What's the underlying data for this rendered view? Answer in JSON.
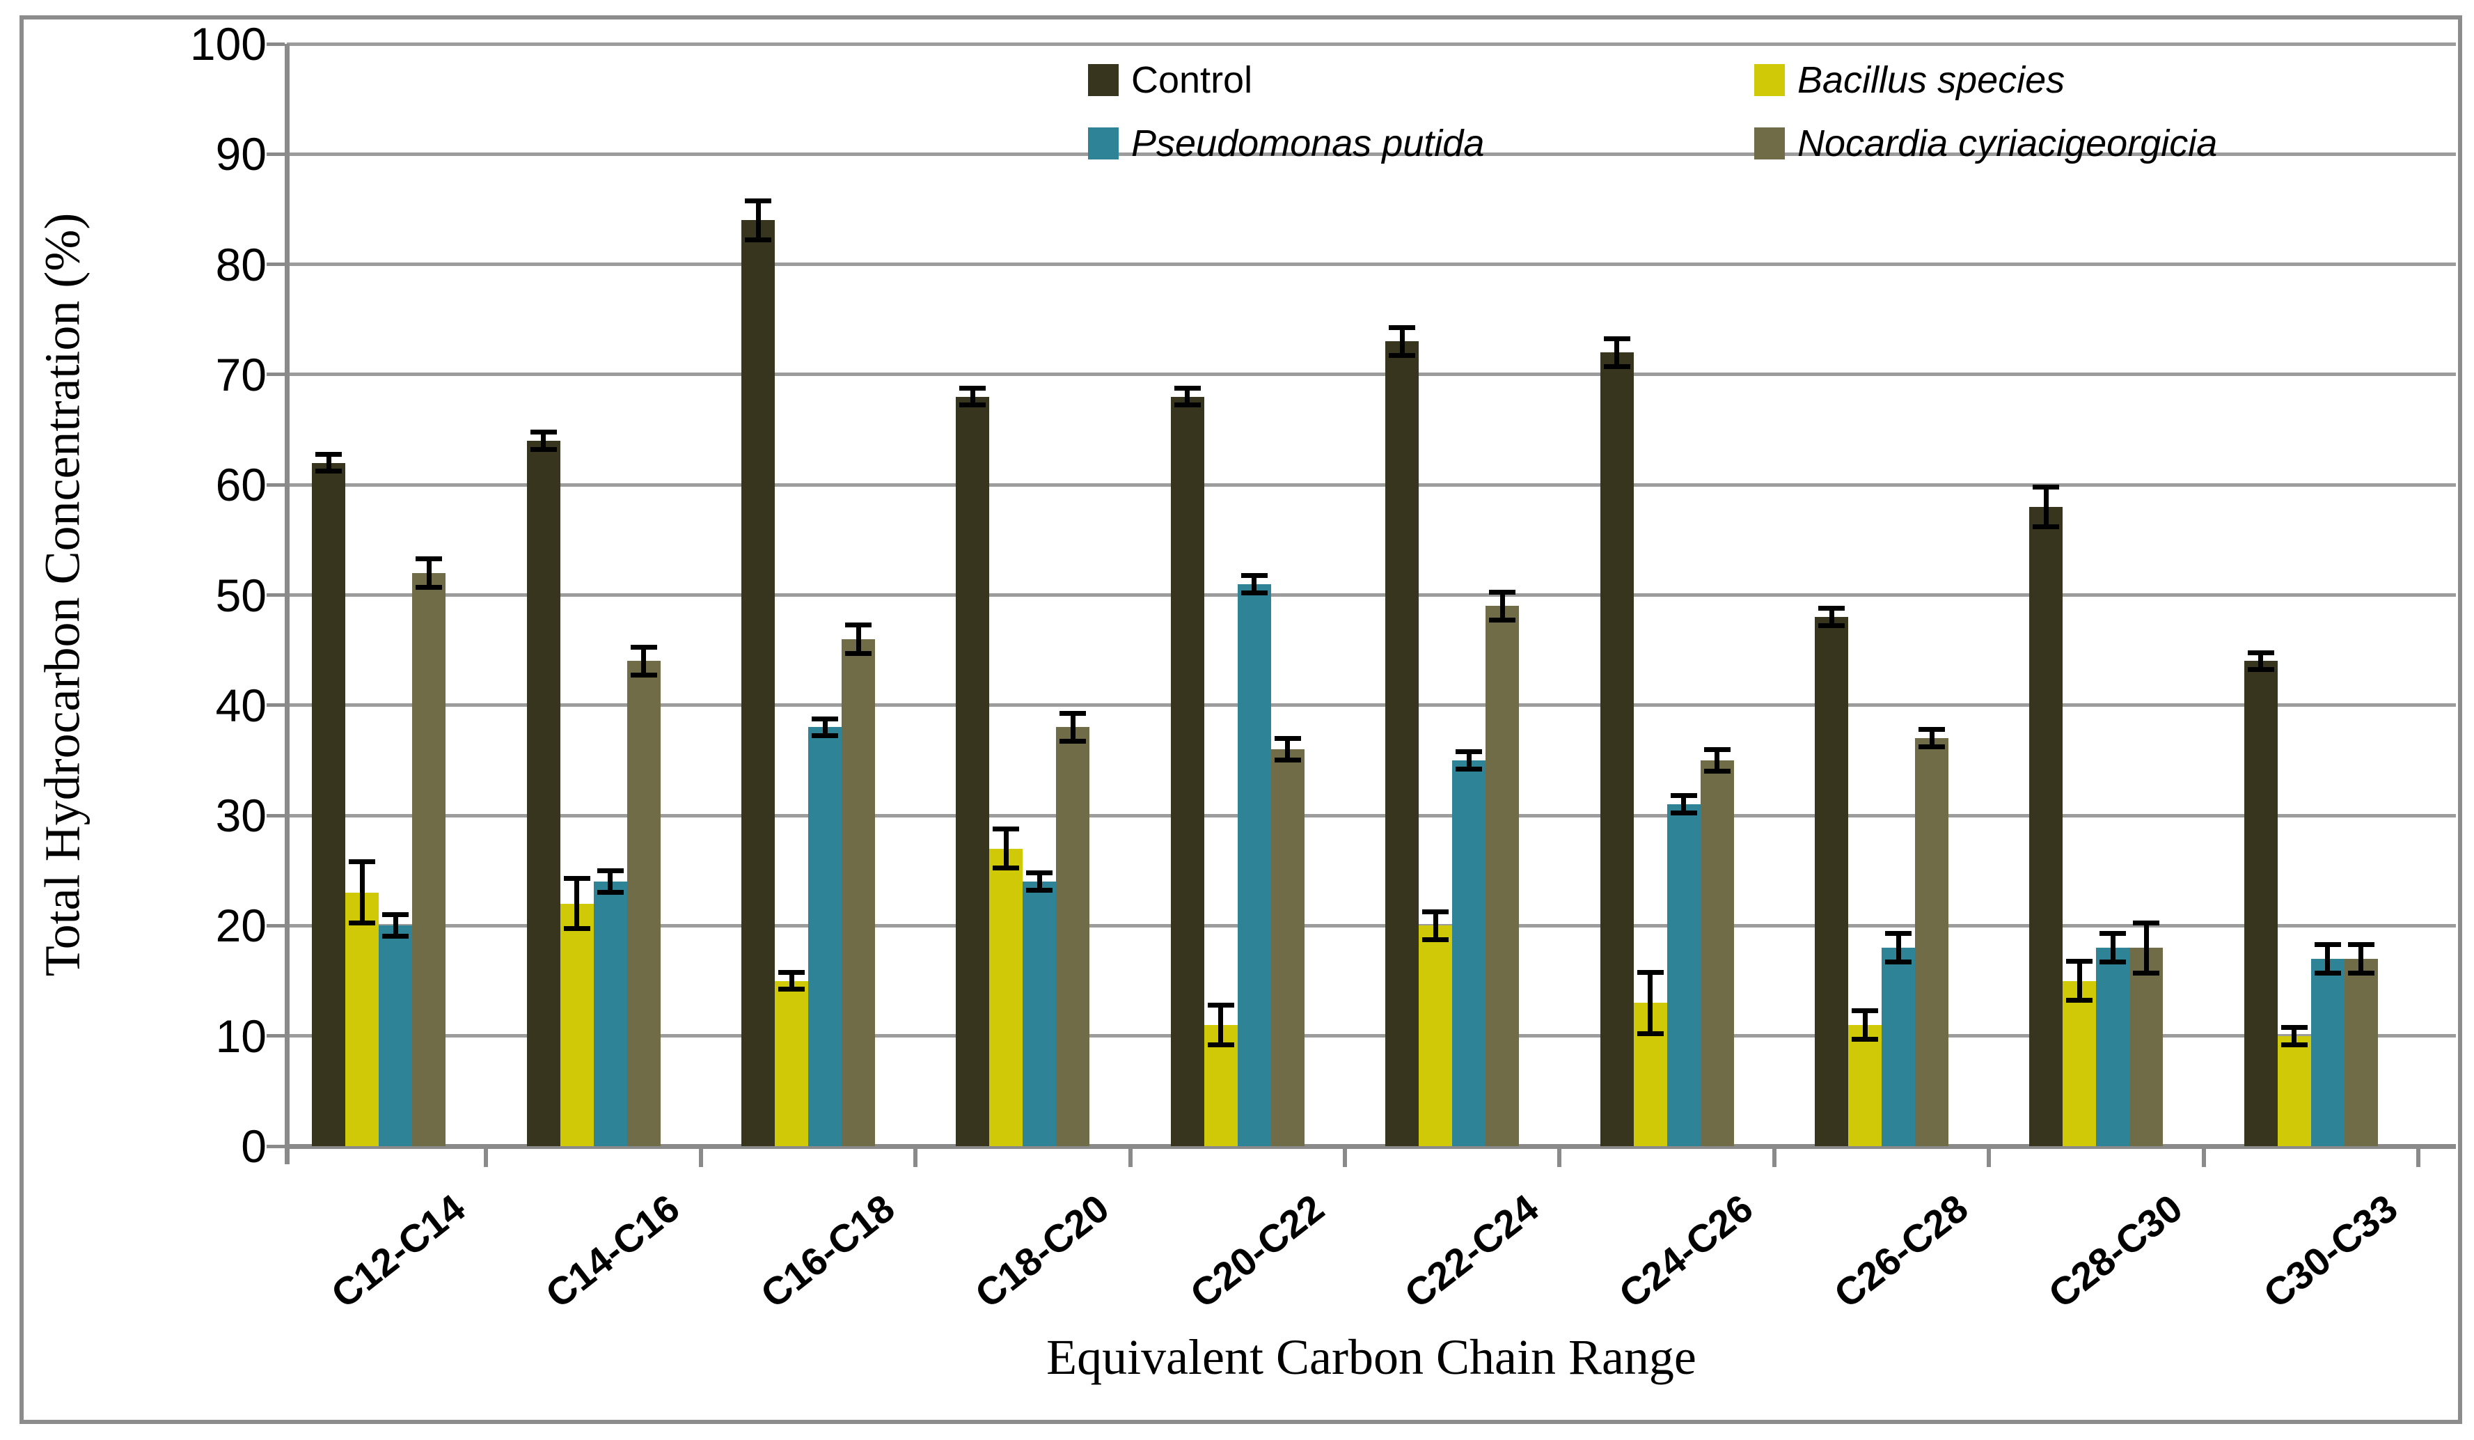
{
  "chart_data": {
    "type": "bar",
    "title": "",
    "xlabel": "Equivalent Carbon Chain Range",
    "ylabel": "Total Hydrocarbon Concentration (%)",
    "ylim": [
      0,
      100
    ],
    "ytick_step": 10,
    "ytick_labels": [
      "0",
      "10",
      "20",
      "30",
      "40",
      "50",
      "60",
      "70",
      "80",
      "90",
      "100"
    ],
    "grid": true,
    "legend_position": "top-center, two columns",
    "error_bars": true,
    "categories": [
      "C12-C14",
      "C14-C16",
      "C16-C18",
      "C18-C20",
      "C20-C22",
      "C22-C24",
      "C24-C26",
      "C26-C28",
      "C28-C30",
      "C30-C33"
    ],
    "series": [
      {
        "name": "Control",
        "italic": false,
        "color": "#37351E",
        "values": [
          62,
          64,
          84,
          68,
          68,
          73,
          72,
          48,
          58,
          44
        ],
        "errors": [
          1,
          1,
          2,
          1,
          1,
          1.5,
          1.5,
          1,
          2,
          1
        ]
      },
      {
        "name": "Bacillus species",
        "italic": true,
        "color": "#CFC908",
        "values": [
          23,
          22,
          15,
          27,
          11,
          20,
          13,
          11,
          15,
          10
        ],
        "errors": [
          3,
          2.5,
          1,
          2,
          2,
          1.5,
          3,
          1.5,
          2,
          1
        ]
      },
      {
        "name": "Pseudomonas putida",
        "italic": true,
        "color": "#2E8396",
        "values": [
          20,
          24,
          38,
          24,
          51,
          35,
          31,
          18,
          18,
          17
        ],
        "errors": [
          1.2,
          1.2,
          1,
          1,
          1,
          1,
          1,
          1.5,
          1.5,
          1.5
        ]
      },
      {
        "name": "Nocardia cyriacigeorgicia",
        "italic": true,
        "color": "#716C48",
        "values": [
          52,
          44,
          46,
          38,
          36,
          49,
          35,
          37,
          18,
          17
        ],
        "errors": [
          1.5,
          1.5,
          1.5,
          1.5,
          1.2,
          1.5,
          1.2,
          1,
          2.5,
          1.5
        ]
      }
    ],
    "colors": {
      "gridline": "#9C9C9C",
      "axis": "#8A8A8A",
      "border": "#8C8C8C",
      "error_bar": "#000000",
      "background": "#FFFFFF"
    }
  }
}
